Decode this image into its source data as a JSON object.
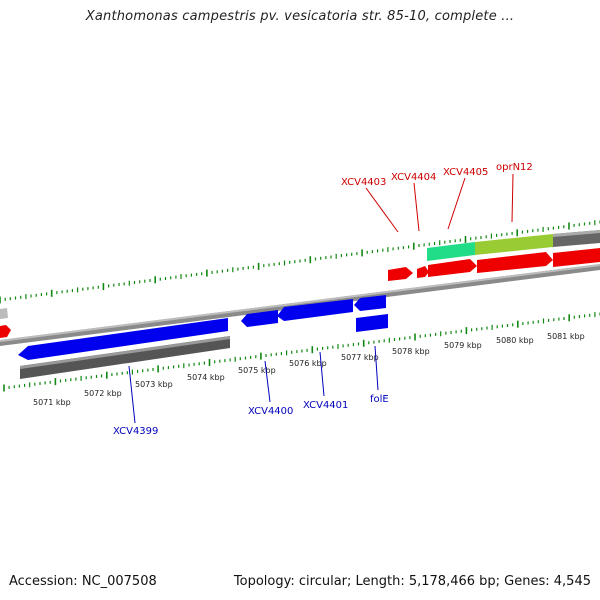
{
  "title": "Xanthomonas campestris pv. vesicatoria str. 85-10, complete ...",
  "footer": {
    "accession": "Accession: NC_007508",
    "summary": "Topology: circular; Length: 5,178,466 bp; Genes: 4,545"
  },
  "colors": {
    "forward_gene": "#ff0000",
    "reverse_gene": "#0000ee",
    "label_forward": "#cc0000",
    "label_reverse": "#0000bb",
    "tick": "#118811",
    "backbone": "#888888",
    "rrna_feature": "#22dd88",
    "cds_feature": "#99cc33"
  },
  "scale_labels": [
    "5071 kbp",
    "5072 kbp",
    "5073 kbp",
    "5074 kbp",
    "5075 kbp",
    "5076 kbp",
    "5077 kbp",
    "5078 kbp",
    "5079 kbp",
    "5080 kbp",
    "5081 kbp"
  ],
  "forward_genes": [
    "XCV4403",
    "XCV4404",
    "XCV4405",
    "oprN12"
  ],
  "reverse_genes": [
    "XCV4399",
    "XCV4400",
    "XCV4401",
    "folE"
  ]
}
